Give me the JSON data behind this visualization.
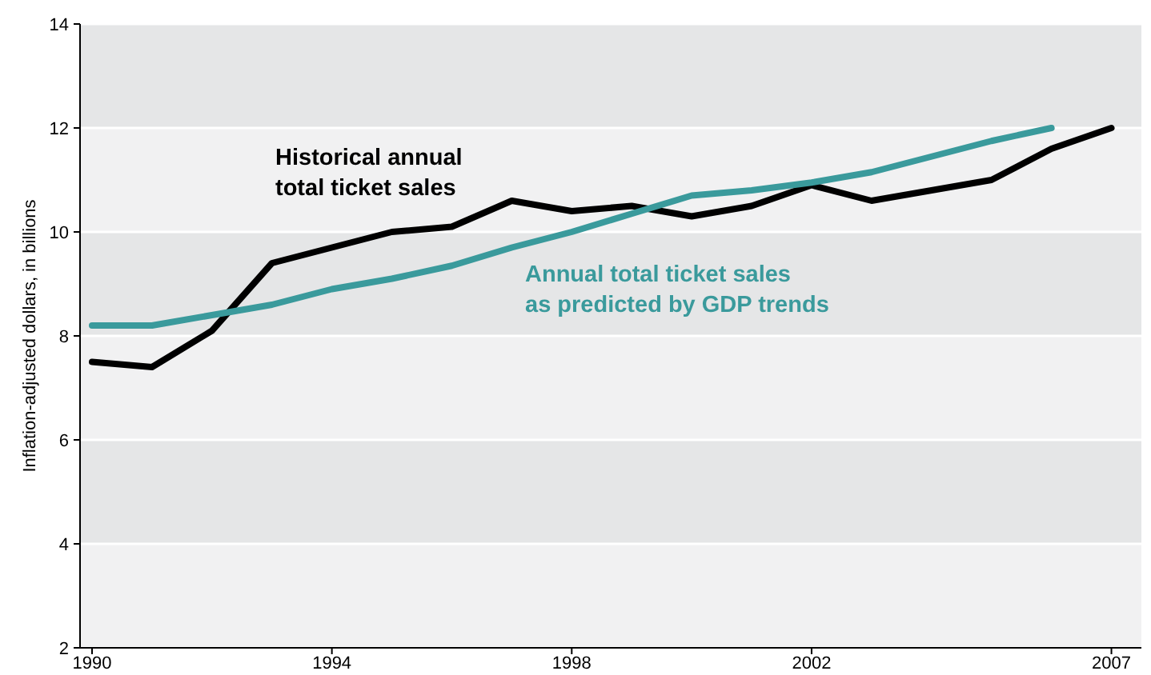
{
  "chart_data": {
    "type": "line",
    "ylabel": "Inflation-adjusted dollars, in billions",
    "xlim": [
      1989.8,
      2007.5
    ],
    "xticks": [
      1990,
      1994,
      1998,
      2002,
      2007
    ],
    "ylim": [
      2,
      14
    ],
    "yticks": [
      2,
      4,
      6,
      8,
      10,
      12,
      14
    ],
    "grid": "y",
    "series": [
      {
        "name": "Historical annual total ticket sales",
        "color": "#000000",
        "x": [
          1990,
          1991,
          1992,
          1993,
          1994,
          1995,
          1996,
          1997,
          1998,
          1999,
          2000,
          2001,
          2002,
          2003,
          2004,
          2005,
          2006,
          2007
        ],
        "values": [
          7.5,
          7.4,
          8.1,
          9.4,
          9.7,
          10.0,
          10.1,
          10.6,
          10.4,
          10.5,
          10.3,
          10.5,
          10.9,
          10.6,
          10.8,
          11.0,
          11.6,
          12.0
        ]
      },
      {
        "name": "Annual total ticket sales as predicted by GDP trends",
        "color": "#3a9a9c",
        "x": [
          1990,
          1991,
          1992,
          1993,
          1994,
          1995,
          1996,
          1997,
          1998,
          1999,
          2000,
          2001,
          2002,
          2003,
          2004,
          2005,
          2006
        ],
        "values": [
          8.2,
          8.2,
          8.4,
          8.6,
          8.9,
          9.1,
          9.35,
          9.7,
          10.0,
          10.35,
          10.7,
          10.8,
          10.95,
          11.15,
          11.45,
          11.75,
          12.0
        ]
      }
    ]
  }
}
